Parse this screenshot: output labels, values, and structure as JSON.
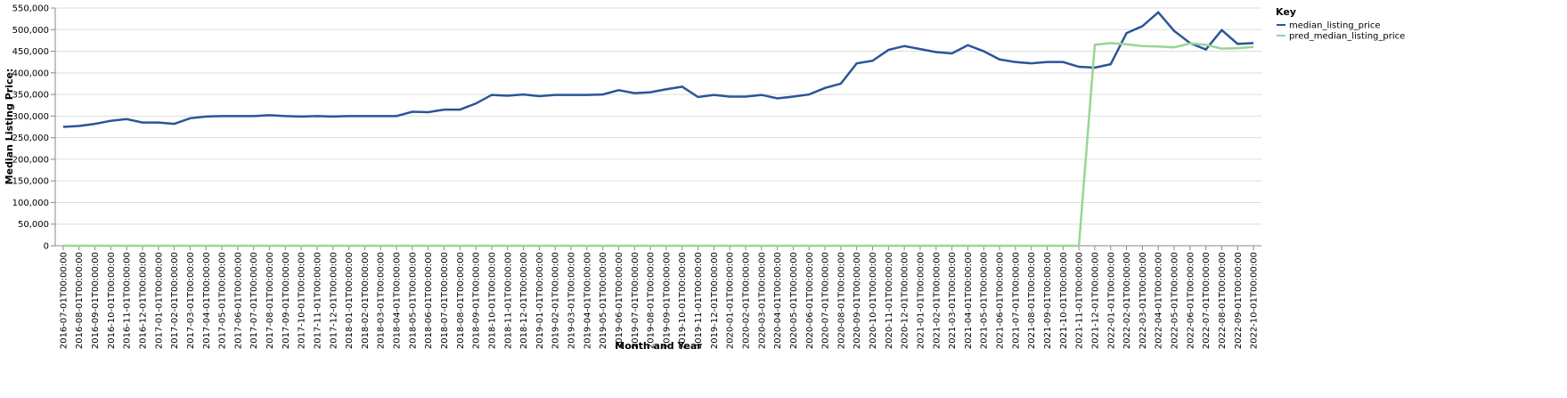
{
  "chart_data": {
    "type": "line",
    "x_label": "Month and Year",
    "y_label": "Median Listing Price:",
    "legend_title": "Key",
    "categories": [
      "2016-07-01T00:00:00",
      "2016-08-01T00:00:00",
      "2016-09-01T00:00:00",
      "2016-10-01T00:00:00",
      "2016-11-01T00:00:00",
      "2016-12-01T00:00:00",
      "2017-01-01T00:00:00",
      "2017-02-01T00:00:00",
      "2017-03-01T00:00:00",
      "2017-04-01T00:00:00",
      "2017-05-01T00:00:00",
      "2017-06-01T00:00:00",
      "2017-07-01T00:00:00",
      "2017-08-01T00:00:00",
      "2017-09-01T00:00:00",
      "2017-10-01T00:00:00",
      "2017-11-01T00:00:00",
      "2017-12-01T00:00:00",
      "2018-01-01T00:00:00",
      "2018-02-01T00:00:00",
      "2018-03-01T00:00:00",
      "2018-04-01T00:00:00",
      "2018-05-01T00:00:00",
      "2018-06-01T00:00:00",
      "2018-07-01T00:00:00",
      "2018-08-01T00:00:00",
      "2018-09-01T00:00:00",
      "2018-10-01T00:00:00",
      "2018-11-01T00:00:00",
      "2018-12-01T00:00:00",
      "2019-01-01T00:00:00",
      "2019-02-01T00:00:00",
      "2019-03-01T00:00:00",
      "2019-04-01T00:00:00",
      "2019-05-01T00:00:00",
      "2019-06-01T00:00:00",
      "2019-07-01T00:00:00",
      "2019-08-01T00:00:00",
      "2019-09-01T00:00:00",
      "2019-10-01T00:00:00",
      "2019-11-01T00:00:00",
      "2019-12-01T00:00:00",
      "2020-01-01T00:00:00",
      "2020-02-01T00:00:00",
      "2020-03-01T00:00:00",
      "2020-04-01T00:00:00",
      "2020-05-01T00:00:00",
      "2020-06-01T00:00:00",
      "2020-07-01T00:00:00",
      "2020-08-01T00:00:00",
      "2020-09-01T00:00:00",
      "2020-10-01T00:00:00",
      "2020-11-01T00:00:00",
      "2020-12-01T00:00:00",
      "2021-01-01T00:00:00",
      "2021-02-01T00:00:00",
      "2021-03-01T00:00:00",
      "2021-04-01T00:00:00",
      "2021-05-01T00:00:00",
      "2021-06-01T00:00:00",
      "2021-07-01T00:00:00",
      "2021-08-01T00:00:00",
      "2021-09-01T00:00:00",
      "2021-10-01T00:00:00",
      "2021-11-01T00:00:00",
      "2021-12-01T00:00:00",
      "2022-01-01T00:00:00",
      "2022-02-01T00:00:00",
      "2022-03-01T00:00:00",
      "2022-04-01T00:00:00",
      "2022-05-01T00:00:00",
      "2022-06-01T00:00:00",
      "2022-07-01T00:00:00",
      "2022-08-01T00:00:00",
      "2022-09-01T00:00:00",
      "2022-10-01T00:00:00"
    ],
    "series": [
      {
        "name": "median_listing_price",
        "color": "#2a5599",
        "values": [
          275000,
          277000,
          282000,
          289000,
          293000,
          285000,
          285000,
          282000,
          295000,
          299000,
          300000,
          300000,
          300000,
          302000,
          300000,
          299000,
          300000,
          299000,
          300000,
          300000,
          300000,
          300000,
          310000,
          309000,
          315000,
          315000,
          329000,
          349000,
          347000,
          350000,
          346000,
          349000,
          349000,
          349000,
          350000,
          360000,
          353000,
          355000,
          362000,
          368000,
          344000,
          349000,
          345000,
          345000,
          349000,
          341000,
          345000,
          350000,
          365000,
          375000,
          422000,
          428000,
          453000,
          462000,
          455000,
          448000,
          445000,
          464000,
          450000,
          431000,
          425000,
          422000,
          425000,
          425000,
          414000,
          412000,
          420000,
          492000,
          508000,
          540000,
          497000,
          469000,
          454000,
          499000,
          467000,
          469000
        ]
      },
      {
        "name": "pred_median_listing_price",
        "color": "#98d594",
        "values": [
          0,
          0,
          0,
          0,
          0,
          0,
          0,
          0,
          0,
          0,
          0,
          0,
          0,
          0,
          0,
          0,
          0,
          0,
          0,
          0,
          0,
          0,
          0,
          0,
          0,
          0,
          0,
          0,
          0,
          0,
          0,
          0,
          0,
          0,
          0,
          0,
          0,
          0,
          0,
          0,
          0,
          0,
          0,
          0,
          0,
          0,
          0,
          0,
          0,
          0,
          0,
          0,
          0,
          0,
          0,
          0,
          0,
          0,
          0,
          0,
          0,
          0,
          0,
          0,
          0,
          465000,
          469000,
          466000,
          462000,
          461000,
          459000,
          468000,
          465000,
          456000,
          457000,
          460000
        ]
      }
    ],
    "ylim": [
      0,
      550000
    ],
    "yticks": [
      0,
      {
        "value": 50000,
        "label": "50,000"
      },
      {
        "value": 100000,
        "label": "100,000"
      },
      {
        "value": 150000,
        "label": "150,000"
      },
      {
        "value": 200000,
        "label": "200,000"
      },
      {
        "value": 250000,
        "label": "250,000"
      },
      {
        "value": 300000,
        "label": "300,000"
      },
      {
        "value": 350000,
        "label": "350,000"
      },
      {
        "value": 400000,
        "label": "400,000"
      },
      {
        "value": 450000,
        "label": "450,000"
      },
      {
        "value": 500000,
        "label": "500,000"
      },
      {
        "value": 550000,
        "label": "550,000"
      }
    ],
    "grid": true
  }
}
